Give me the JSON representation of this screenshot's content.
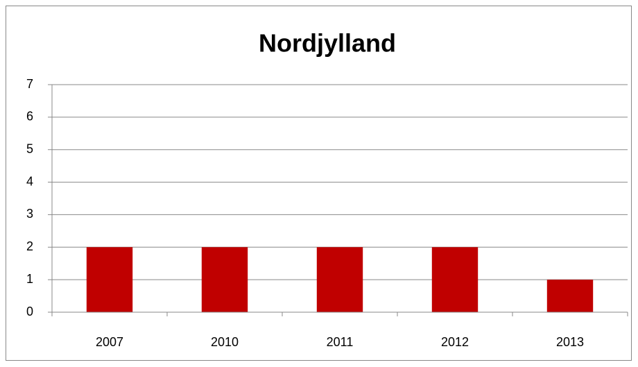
{
  "chart_data": {
    "type": "bar",
    "title": "Nordjylland",
    "categories": [
      "2007",
      "2010",
      "2011",
      "2012",
      "2013"
    ],
    "values": [
      2,
      2,
      2,
      2,
      1
    ],
    "color": "#c00000",
    "ylim": [
      0,
      7
    ],
    "yticks": [
      0,
      1,
      2,
      3,
      4,
      5,
      6,
      7
    ],
    "grid": true
  }
}
